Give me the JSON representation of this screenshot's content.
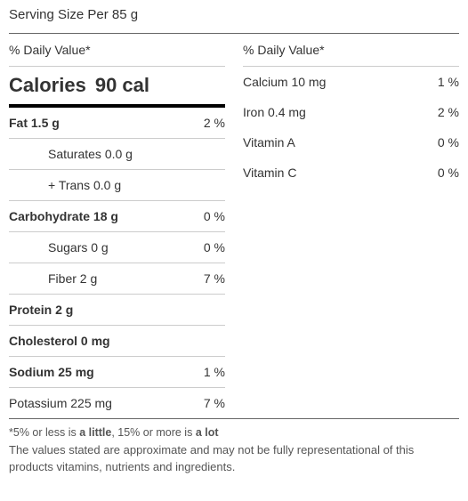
{
  "serving": "Serving Size Per 85 g",
  "dv_header": "% Daily Value*",
  "calories": {
    "label": "Calories",
    "value": "90 cal"
  },
  "left": [
    {
      "name": "Fat",
      "value": "1.5 g",
      "pct": "2 %",
      "bold": true,
      "indent": 0
    },
    {
      "name": "Saturates",
      "value": "0.0 g",
      "pct": "",
      "bold": false,
      "indent": 1
    },
    {
      "name": "+ Trans",
      "value": "0.0 g",
      "pct": "",
      "bold": false,
      "indent": 1
    },
    {
      "name": "Carbohydrate",
      "value": "18 g",
      "pct": "0 %",
      "bold": true,
      "indent": 0
    },
    {
      "name": "Sugars",
      "value": "0 g",
      "pct": "0 %",
      "bold": false,
      "indent": 1
    },
    {
      "name": "Fiber",
      "value": "2 g",
      "pct": "7 %",
      "bold": false,
      "indent": 1
    },
    {
      "name": "Protein",
      "value": "2 g",
      "pct": "",
      "bold": true,
      "indent": 0
    },
    {
      "name": "Cholesterol",
      "value": "0 mg",
      "pct": "",
      "bold": true,
      "indent": 0
    },
    {
      "name": "Sodium",
      "value": "25 mg",
      "pct": "1 %",
      "bold": true,
      "indent": 0
    },
    {
      "name": "Potassium",
      "value": "225 mg",
      "pct": "7 %",
      "bold": false,
      "indent": 0
    }
  ],
  "right": [
    {
      "name": "Calcium",
      "value": "10 mg",
      "pct": "1 %"
    },
    {
      "name": "Iron",
      "value": "0.4 mg",
      "pct": "2 %"
    },
    {
      "name": "Vitamin A",
      "value": "",
      "pct": "0 %"
    },
    {
      "name": "Vitamin C",
      "value": "",
      "pct": "0 %"
    }
  ],
  "footer": {
    "note1_a": "*5% or less is ",
    "note1_b": "a little",
    "note1_c": ", 15% or more is ",
    "note1_d": "a lot",
    "note2": "The values stated are approximate and may not be fully representational of this products vitamins, nutrients and ingredients."
  }
}
